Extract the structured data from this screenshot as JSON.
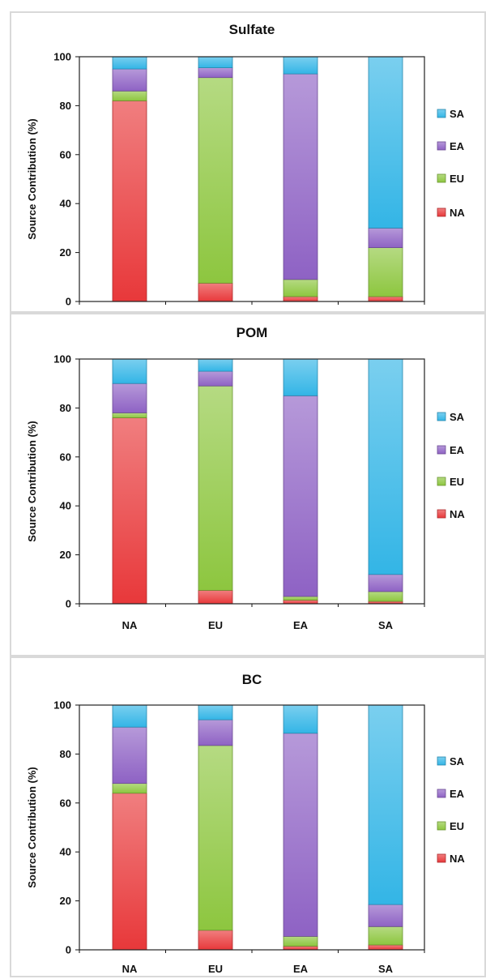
{
  "chart_data": [
    {
      "type": "bar",
      "stacked": true,
      "title": "Sulfate",
      "ylabel": "Source Contribution (%)",
      "xlabel": "",
      "ylim": [
        0,
        100
      ],
      "yticks": [
        0,
        20,
        40,
        60,
        80,
        100
      ],
      "categories": [
        "NA",
        "EU",
        "EA",
        "SA"
      ],
      "legend_position": "right",
      "series": [
        {
          "name": "NA",
          "values": [
            82,
            7.5,
            2,
            2
          ]
        },
        {
          "name": "EU",
          "values": [
            4,
            84,
            7,
            20
          ]
        },
        {
          "name": "EA",
          "values": [
            9,
            4,
            84,
            8
          ]
        },
        {
          "name": "SA",
          "values": [
            5,
            4.5,
            7,
            70
          ]
        }
      ]
    },
    {
      "type": "bar",
      "stacked": true,
      "title": "POM",
      "ylabel": "Source Contribution (%)",
      "xlabel": "",
      "ylim": [
        0,
        100
      ],
      "yticks": [
        0,
        20,
        40,
        60,
        80,
        100
      ],
      "categories": [
        "NA",
        "EU",
        "EA",
        "SA"
      ],
      "legend_position": "right",
      "series": [
        {
          "name": "NA",
          "values": [
            76,
            5.5,
            1.5,
            1
          ]
        },
        {
          "name": "EU",
          "values": [
            2,
            83.5,
            1.5,
            4
          ]
        },
        {
          "name": "EA",
          "values": [
            12,
            6,
            82,
            7
          ]
        },
        {
          "name": "SA",
          "values": [
            10,
            5,
            15,
            88
          ]
        }
      ]
    },
    {
      "type": "bar",
      "stacked": true,
      "title": "BC",
      "ylabel": "Source Contribution (%)",
      "xlabel": "",
      "ylim": [
        0,
        100
      ],
      "yticks": [
        0,
        20,
        40,
        60,
        80,
        100
      ],
      "categories": [
        "NA",
        "EU",
        "EA",
        "SA"
      ],
      "legend_position": "right",
      "series": [
        {
          "name": "NA",
          "values": [
            64,
            8,
            1.5,
            2
          ]
        },
        {
          "name": "EU",
          "values": [
            4,
            75.5,
            4,
            7.5
          ]
        },
        {
          "name": "EA",
          "values": [
            23,
            10.5,
            83,
            9
          ]
        },
        {
          "name": "SA",
          "values": [
            9,
            6,
            11.5,
            81.5
          ]
        }
      ]
    }
  ],
  "colors": {
    "NA": "#e8383a",
    "EU": "#8dc63f",
    "EA": "#8e62c4",
    "SA": "#33b5e6"
  },
  "legend_order": [
    "SA",
    "EA",
    "EU",
    "NA"
  ]
}
